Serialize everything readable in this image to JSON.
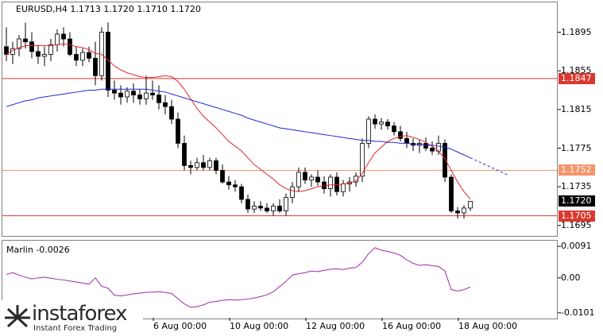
{
  "chart_data": [
    {
      "type": "candlestick",
      "symbol_title": "EURUSD,H4  1.1713 1.1720 1.1710 1.1720",
      "y_ticks": [
        "1.1895",
        "1.1855",
        "1.1815",
        "1.1775",
        "1.1735",
        "1.1695"
      ],
      "ylim": [
        1.1685,
        1.1925
      ],
      "levels": [
        {
          "value": 1.1847,
          "label": "1.1847",
          "color": "#d9382e"
        },
        {
          "value": 1.1752,
          "label": "1.1752",
          "color": "#f4956a"
        },
        {
          "value": 1.1705,
          "label": "1.1705",
          "color": "#d9382e"
        }
      ],
      "current_price": {
        "value": 1.172,
        "label": "1.1720"
      },
      "x_ticks": [
        "6 Aug 00:00",
        "10 Aug 00:00",
        "12 Aug 00:00",
        "16 Aug 00:00",
        "18 Aug 00:00"
      ],
      "candles": [
        [
          1.188,
          1.19,
          1.1865,
          1.1872
        ],
        [
          1.1872,
          1.1885,
          1.1862,
          1.1878
        ],
        [
          1.1878,
          1.1892,
          1.187,
          1.1888
        ],
        [
          1.1888,
          1.1905,
          1.1878,
          1.1885
        ],
        [
          1.1885,
          1.1895,
          1.1868,
          1.1875
        ],
        [
          1.1875,
          1.1882,
          1.1862,
          1.187
        ],
        [
          1.187,
          1.188,
          1.186,
          1.1872
        ],
        [
          1.1872,
          1.1888,
          1.1865,
          1.1882
        ],
        [
          1.1882,
          1.1898,
          1.1875,
          1.1893
        ],
        [
          1.1893,
          1.19,
          1.188,
          1.1888
        ],
        [
          1.1888,
          1.1895,
          1.187,
          1.1872
        ],
        [
          1.1872,
          1.188,
          1.186,
          1.1866
        ],
        [
          1.1866,
          1.1878,
          1.186,
          1.1874
        ],
        [
          1.1874,
          1.188,
          1.1864,
          1.1868
        ],
        [
          1.1868,
          1.1885,
          1.184,
          1.185
        ],
        [
          1.185,
          1.19,
          1.1845,
          1.1895
        ],
        [
          1.1895,
          1.1905,
          1.1828,
          1.1835
        ],
        [
          1.1835,
          1.1845,
          1.1825,
          1.1832
        ],
        [
          1.1832,
          1.184,
          1.182,
          1.1828
        ],
        [
          1.1828,
          1.1838,
          1.1822,
          1.1834
        ],
        [
          1.1834,
          1.1842,
          1.1822,
          1.183
        ],
        [
          1.183,
          1.1836,
          1.182,
          1.1826
        ],
        [
          1.1826,
          1.185,
          1.182,
          1.1832
        ],
        [
          1.1832,
          1.1845,
          1.1825,
          1.183
        ],
        [
          1.183,
          1.184,
          1.1815,
          1.1822
        ],
        [
          1.1822,
          1.183,
          1.181,
          1.1818
        ],
        [
          1.1818,
          1.1825,
          1.18,
          1.1805
        ],
        [
          1.1805,
          1.1812,
          1.1775,
          1.178
        ],
        [
          1.178,
          1.1788,
          1.1752,
          1.1757
        ],
        [
          1.1757,
          1.1762,
          1.1748,
          1.1755
        ],
        [
          1.1755,
          1.1765,
          1.1752,
          1.176
        ],
        [
          1.176,
          1.1768,
          1.1752,
          1.1755
        ],
        [
          1.1755,
          1.1765,
          1.1752,
          1.1762
        ],
        [
          1.1762,
          1.1765,
          1.1748,
          1.1752
        ],
        [
          1.1752,
          1.1758,
          1.1738,
          1.174
        ],
        [
          1.174,
          1.1746,
          1.1732,
          1.1737
        ],
        [
          1.1737,
          1.1742,
          1.173,
          1.1735
        ],
        [
          1.1735,
          1.1738,
          1.1718,
          1.1722
        ],
        [
          1.1722,
          1.1727,
          1.1708,
          1.1712
        ],
        [
          1.1712,
          1.172,
          1.1708,
          1.1715
        ],
        [
          1.1715,
          1.172,
          1.171,
          1.1713
        ],
        [
          1.1713,
          1.1718,
          1.1708,
          1.171
        ],
        [
          1.171,
          1.1718,
          1.1705,
          1.1715
        ],
        [
          1.1715,
          1.1722,
          1.1708,
          1.171
        ],
        [
          1.171,
          1.1728,
          1.1705,
          1.1724
        ],
        [
          1.1724,
          1.174,
          1.1718,
          1.1735
        ],
        [
          1.1735,
          1.1755,
          1.173,
          1.175
        ],
        [
          1.175,
          1.1755,
          1.1738,
          1.1742
        ],
        [
          1.1742,
          1.1748,
          1.1735,
          1.1745
        ],
        [
          1.1745,
          1.1752,
          1.1736,
          1.174
        ],
        [
          1.174,
          1.1746,
          1.1728,
          1.1733
        ],
        [
          1.1733,
          1.1748,
          1.1725,
          1.1745
        ],
        [
          1.1745,
          1.175,
          1.1726,
          1.173
        ],
        [
          1.173,
          1.1742,
          1.1725,
          1.1738
        ],
        [
          1.1738,
          1.1745,
          1.173,
          1.174
        ],
        [
          1.174,
          1.175,
          1.1735,
          1.1746
        ],
        [
          1.1746,
          1.1785,
          1.174,
          1.178
        ],
        [
          1.178,
          1.1808,
          1.1775,
          1.1805
        ],
        [
          1.1805,
          1.181,
          1.1795,
          1.18
        ],
        [
          1.18,
          1.1806,
          1.1794,
          1.1802
        ],
        [
          1.1802,
          1.1805,
          1.1794,
          1.1798
        ],
        [
          1.1798,
          1.1802,
          1.1788,
          1.1792
        ],
        [
          1.1792,
          1.1798,
          1.1782,
          1.1785
        ],
        [
          1.1785,
          1.1792,
          1.1775,
          1.178
        ],
        [
          1.178,
          1.1785,
          1.1772,
          1.1778
        ],
        [
          1.1778,
          1.1784,
          1.177,
          1.178
        ],
        [
          1.178,
          1.1786,
          1.1772,
          1.1775
        ],
        [
          1.1775,
          1.1782,
          1.1768,
          1.1772
        ],
        [
          1.1772,
          1.1788,
          1.1768,
          1.178
        ],
        [
          1.178,
          1.1784,
          1.174,
          1.1745
        ],
        [
          1.1745,
          1.1748,
          1.1708,
          1.171
        ],
        [
          1.171,
          1.1714,
          1.1702,
          1.1708
        ],
        [
          1.1708,
          1.1716,
          1.1702,
          1.1713
        ],
        [
          1.1713,
          1.172,
          1.171,
          1.172
        ]
      ],
      "series": [
        {
          "color": "#e0262b",
          "values": [
            1.1872,
            1.1876,
            1.1879,
            1.1881,
            1.1881,
            1.1881,
            1.1881,
            1.1881,
            1.1882,
            1.1883,
            1.1882,
            1.188,
            1.1879,
            1.1877,
            1.1873,
            1.1872,
            1.1866,
            1.186,
            1.1856,
            1.1853,
            1.1851,
            1.1849,
            1.1848,
            1.1848,
            1.1849,
            1.185,
            1.1849,
            1.1844,
            1.1836,
            1.1826,
            1.1816,
            1.1808,
            1.1802,
            1.1796,
            1.1789,
            1.1782,
            1.1777,
            1.1772,
            1.1765,
            1.1758,
            1.1753,
            1.1748,
            1.1743,
            1.1737,
            1.1733,
            1.1731,
            1.173,
            1.1731,
            1.1733,
            1.1735,
            1.1736,
            1.1737,
            1.1737,
            1.1738,
            1.1739,
            1.1741,
            1.1749,
            1.176,
            1.177,
            1.1776,
            1.1782,
            1.1785,
            1.1787,
            1.1788,
            1.1786,
            1.1784,
            1.1781,
            1.1777,
            1.1772,
            1.1764,
            1.1752,
            1.174,
            1.173,
            1.1722
          ]
        },
        {
          "color": "#1f2bd0",
          "values": [
            1.1818,
            1.182,
            1.1822,
            1.1824,
            1.1825,
            1.1827,
            1.1828,
            1.1829,
            1.183,
            1.1831,
            1.1832,
            1.1833,
            1.1834,
            1.1835,
            1.1835,
            1.1836,
            1.1836,
            1.1836,
            1.1836,
            1.1836,
            1.1836,
            1.1836,
            1.1836,
            1.1835,
            1.1834,
            1.1833,
            1.1831,
            1.1829,
            1.1827,
            1.1825,
            1.1823,
            1.1821,
            1.1819,
            1.1817,
            1.1815,
            1.1813,
            1.1811,
            1.1809,
            1.1806,
            1.1804,
            1.1802,
            1.18,
            1.1798,
            1.1796,
            1.1795,
            1.1794,
            1.1793,
            1.1792,
            1.1791,
            1.179,
            1.1789,
            1.1788,
            1.1787,
            1.1786,
            1.1785,
            1.1784,
            1.1783,
            1.1783,
            1.1782,
            1.1782,
            1.1781,
            1.1781,
            1.178,
            1.178,
            1.1779,
            1.1779,
            1.1778,
            1.1778,
            1.1777,
            1.1776,
            1.1774,
            1.1771,
            1.1768,
            1.1765
          ],
          "dotted_extension": [
            1.1762,
            1.1759,
            1.1756,
            1.1753,
            1.175,
            1.1747
          ]
        }
      ]
    },
    {
      "type": "line",
      "title": "Marlin -0.0026",
      "y_ticks": [
        "0.0091",
        "0.00",
        "-0.0101"
      ],
      "ylim": [
        -0.0115,
        0.0105
      ],
      "series": [
        {
          "color": "#9e2aa8",
          "values": [
            0.001,
            0.0015,
            0.0008,
            0.0002,
            -0.0003,
            0.0,
            0.0002,
            -0.0001,
            -0.0004,
            -0.0006,
            -0.0009,
            -0.0012,
            -0.0015,
            -0.0018,
            0.0,
            -0.0024,
            -0.003,
            -0.005,
            -0.0052,
            -0.0049,
            -0.0046,
            -0.0044,
            -0.0042,
            -0.0041,
            -0.004,
            -0.0042,
            -0.0045,
            -0.006,
            -0.0075,
            -0.0085,
            -0.0083,
            -0.0078,
            -0.007,
            -0.0068,
            -0.0065,
            -0.0063,
            -0.0064,
            -0.0063,
            -0.0061,
            -0.0058,
            -0.0054,
            -0.0049,
            -0.004,
            -0.0025,
            -0.001,
            0.0008,
            0.0012,
            0.0015,
            0.002,
            0.0018,
            0.0022,
            0.0025,
            0.0026,
            0.0024,
            0.0028,
            0.003,
            0.0045,
            0.007,
            0.0087,
            0.008,
            0.0076,
            0.0072,
            0.0065,
            0.0052,
            0.0042,
            0.0036,
            0.0038,
            0.0035,
            0.0033,
            0.002,
            -0.0034,
            -0.0038,
            -0.0034,
            -0.0026
          ]
        }
      ]
    }
  ],
  "watermark": {
    "brand": "instaforex",
    "tagline": "Instant Forex Trading"
  }
}
